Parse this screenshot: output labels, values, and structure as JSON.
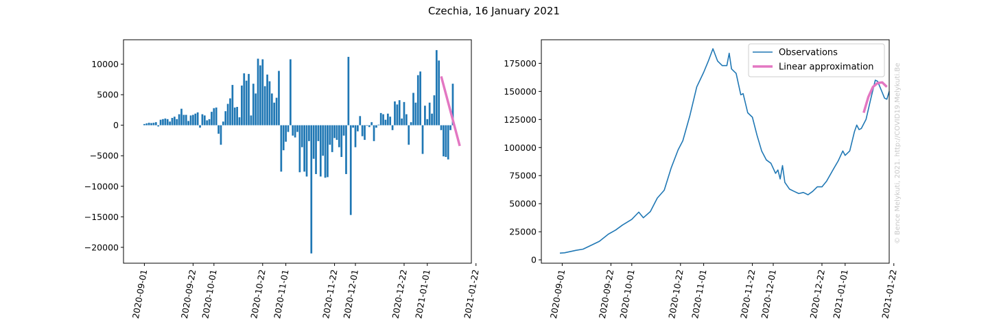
{
  "title": "Czechia, 16 January 2021",
  "credit": "© Bence Melykuti, 2021. http://COVID19.Melykuti.Be",
  "colors": {
    "bars": "#1f77b4",
    "observations": "#1f77b4",
    "approximation": "#e377c2"
  },
  "chart_data": [
    {
      "type": "bar",
      "xlabel": "",
      "ylabel": "",
      "xlim": [
        "2020-08-23",
        "2021-01-20"
      ],
      "ylim": [
        -22600,
        14000
      ],
      "x_ticks": [
        "2020-09-01",
        "2020-09-22",
        "2020-10-01",
        "2020-10-22",
        "2020-11-01",
        "2020-11-22",
        "2020-12-01",
        "2020-12-22",
        "2021-01-01",
        "2021-01-22"
      ],
      "y_ticks": [
        10000,
        5000,
        0,
        -5000,
        -10000,
        -15000,
        -20000
      ],
      "y_tick_labels": [
        "10000",
        "5000",
        "0",
        "−5000",
        "−10000",
        "−15000",
        "−20000"
      ],
      "series": [
        {
          "start_date": "2020-09-01",
          "values": [
            200,
            300,
            400,
            350,
            400,
            500,
            -200,
            900,
            1000,
            1100,
            1000,
            600,
            1200,
            1400,
            1000,
            1800,
            2700,
            1700,
            1700,
            700,
            1600,
            1700,
            1900,
            2100,
            -400,
            1800,
            1600,
            800,
            1000,
            2200,
            2800,
            2900,
            -1400,
            -3200,
            600,
            2300,
            3500,
            4400,
            6600,
            2900,
            3000,
            1300,
            6500,
            8500,
            7300,
            8400,
            1600,
            6800,
            5200,
            10900,
            9800,
            10800,
            6400,
            8300,
            7200,
            5200,
            3700,
            4500,
            8900,
            -7600,
            -4100,
            -2700,
            -1100,
            10800,
            -1700,
            -2000,
            -1100,
            -7700,
            -3600,
            -7600,
            -8400,
            -2600,
            -21000,
            -5500,
            -8000,
            -2600,
            -8400,
            -5000,
            -8600,
            -8500,
            -3200,
            -4400,
            -2100,
            -2400,
            -3600,
            -5200,
            -1700,
            -8000,
            11200,
            -14700,
            -400,
            -3600,
            -1000,
            1500,
            -1800,
            -2400,
            -100,
            -300,
            500,
            -2600,
            -400,
            100,
            2000,
            1800,
            900,
            1900,
            1400,
            -800,
            3900,
            3400,
            4100,
            1100,
            3800,
            1800,
            -3200,
            500,
            5300,
            3700,
            8200,
            8800,
            -4700,
            3200,
            1000,
            3700,
            1900,
            4900,
            12300,
            10600,
            -800,
            -5100,
            -5200,
            -5600,
            -800,
            6800
          ],
          "approximation_start": "2021-01-07",
          "approximation_end": "2021-01-15",
          "approximation_y": [
            8000,
            -3400
          ]
        }
      ]
    },
    {
      "type": "line",
      "xlabel": "",
      "ylabel": "",
      "xlim": [
        "2020-08-23",
        "2021-01-20"
      ],
      "ylim": [
        -3000,
        196000
      ],
      "x_ticks": [
        "2020-09-01",
        "2020-09-22",
        "2020-10-01",
        "2020-10-22",
        "2020-11-01",
        "2020-11-22",
        "2020-12-01",
        "2020-12-22",
        "2021-01-01",
        "2021-01-22"
      ],
      "y_ticks": [
        0,
        25000,
        50000,
        75000,
        100000,
        125000,
        150000,
        175000
      ],
      "legend_position": "top-right",
      "series": [
        {
          "name": "Observations",
          "points": [
            [
              "2020-08-31",
              6000
            ],
            [
              "2020-09-02",
              6300
            ],
            [
              "2020-09-07",
              8500
            ],
            [
              "2020-09-10",
              9500
            ],
            [
              "2020-09-14",
              13500
            ],
            [
              "2020-09-17",
              16500
            ],
            [
              "2020-09-21",
              23000
            ],
            [
              "2020-09-24",
              26500
            ],
            [
              "2020-09-27",
              31000
            ],
            [
              "2020-10-01",
              36000
            ],
            [
              "2020-10-04",
              42500
            ],
            [
              "2020-10-06",
              37500
            ],
            [
              "2020-10-09",
              43000
            ],
            [
              "2020-10-12",
              55000
            ],
            [
              "2020-10-15",
              62000
            ],
            [
              "2020-10-18",
              82000
            ],
            [
              "2020-10-21",
              98000
            ],
            [
              "2020-10-23",
              106000
            ],
            [
              "2020-10-26",
              128000
            ],
            [
              "2020-10-29",
              154000
            ],
            [
              "2020-11-01",
              167000
            ],
            [
              "2020-11-03",
              177000
            ],
            [
              "2020-11-05",
              188000
            ],
            [
              "2020-11-07",
              177000
            ],
            [
              "2020-11-09",
              173000
            ],
            [
              "2020-11-11",
              173000
            ],
            [
              "2020-11-12",
              184000
            ],
            [
              "2020-11-13",
              170000
            ],
            [
              "2020-11-15",
              166000
            ],
            [
              "2020-11-17",
              147000
            ],
            [
              "2020-11-18",
              148000
            ],
            [
              "2020-11-20",
              131000
            ],
            [
              "2020-11-22",
              127000
            ],
            [
              "2020-11-24",
              111000
            ],
            [
              "2020-11-26",
              97000
            ],
            [
              "2020-11-28",
              89000
            ],
            [
              "2020-11-30",
              86000
            ],
            [
              "2020-12-02",
              77000
            ],
            [
              "2020-12-03",
              80000
            ],
            [
              "2020-12-04",
              72000
            ],
            [
              "2020-12-05",
              84000
            ],
            [
              "2020-12-06",
              69000
            ],
            [
              "2020-12-08",
              63000
            ],
            [
              "2020-12-10",
              61000
            ],
            [
              "2020-12-12",
              59000
            ],
            [
              "2020-12-14",
              60000
            ],
            [
              "2020-12-16",
              58000
            ],
            [
              "2020-12-18",
              61000
            ],
            [
              "2020-12-20",
              65000
            ],
            [
              "2020-12-22",
              65000
            ],
            [
              "2020-12-24",
              70000
            ],
            [
              "2020-12-27",
              81000
            ],
            [
              "2020-12-29",
              88000
            ],
            [
              "2020-12-31",
              97000
            ],
            [
              "2021-01-01",
              93000
            ],
            [
              "2021-01-03",
              97000
            ],
            [
              "2021-01-05",
              114000
            ],
            [
              "2021-01-06",
              120000
            ],
            [
              "2021-01-07",
              116000
            ],
            [
              "2021-01-08",
              117000
            ],
            [
              "2021-01-10",
              125000
            ],
            [
              "2021-01-12",
              143000
            ],
            [
              "2021-01-14",
              160000
            ],
            [
              "2021-01-15",
              159000
            ],
            [
              "2021-01-17",
              149000
            ],
            [
              "2021-01-18",
              144000
            ],
            [
              "2021-01-19",
              143000
            ],
            [
              "2021-01-20",
              150000
            ]
          ]
        },
        {
          "name": "Linear approximation",
          "points": [
            [
              "2021-01-09",
              131000
            ],
            [
              "2021-01-11",
              145000
            ],
            [
              "2021-01-13",
              154000
            ],
            [
              "2021-01-15",
              157500
            ],
            [
              "2021-01-17",
              158000
            ],
            [
              "2021-01-19",
              154000
            ]
          ]
        }
      ]
    }
  ]
}
